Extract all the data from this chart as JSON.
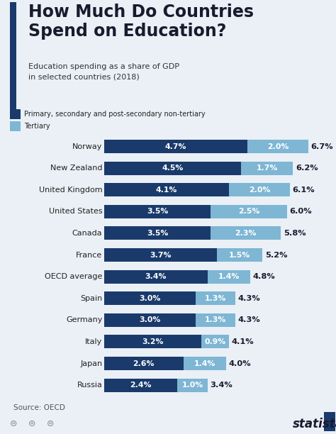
{
  "title": "How Much Do Countries\nSpend on Education?",
  "subtitle": "Education spending as a share of GDP\nin selected countries (2018)",
  "legend1": "Primary, secondary and post-secondary non-tertiary",
  "legend2": "Tertiary",
  "source": "Source: OECD",
  "countries": [
    "Norway",
    "New Zealand",
    "United Kingdom",
    "United States",
    "Canada",
    "France",
    "OECD average",
    "Spain",
    "Germany",
    "Italy",
    "Japan",
    "Russia"
  ],
  "primary": [
    4.7,
    4.5,
    4.1,
    3.5,
    3.5,
    3.7,
    3.4,
    3.0,
    3.0,
    3.2,
    2.6,
    2.4
  ],
  "tertiary": [
    2.0,
    1.7,
    2.0,
    2.5,
    2.3,
    1.5,
    1.4,
    1.3,
    1.3,
    0.9,
    1.4,
    1.0
  ],
  "total": [
    6.7,
    6.2,
    6.1,
    6.0,
    5.8,
    5.2,
    4.8,
    4.3,
    4.3,
    4.1,
    4.0,
    3.4
  ],
  "color_primary": "#1a3a6b",
  "color_tertiary": "#7eb6d4",
  "color_background": "#eaf0f6",
  "color_title_bar": "#1a3a6b",
  "bar_height": 0.62,
  "xlim_max": 7.5
}
